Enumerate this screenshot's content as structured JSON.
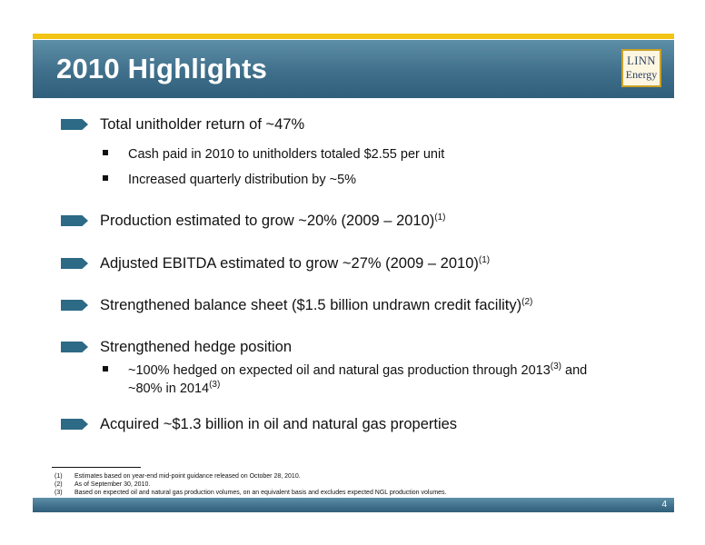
{
  "header": {
    "title": "2010 Highlights",
    "logo_line1": "LINN",
    "logo_line2": "Energy"
  },
  "items": [
    {
      "text": "Total unitholder return of ~47%",
      "subs": [
        "Cash paid in 2010 to unitholders totaled $2.55 per unit",
        "Increased quarterly distribution by ~5%"
      ]
    },
    {
      "text": "Production estimated to grow ~20% (2009 – 2010)",
      "sup": "(1)"
    },
    {
      "text": "Adjusted EBITDA estimated to grow ~27% (2009 – 2010)",
      "sup": "(1)"
    },
    {
      "text": "Strengthened balance sheet ($1.5 billion undrawn credit facility)",
      "sup": "(2)"
    },
    {
      "text": "Strengthened hedge position",
      "sub": {
        "line1": "~100% hedged on expected oil and natural gas production through 2013",
        "line1_sup": "(3)",
        "line1_tail": " and",
        "line2": "~80% in 2014",
        "line2_sup": "(3)"
      }
    },
    {
      "text": "Acquired ~$1.3 billion in oil and natural gas properties"
    }
  ],
  "footnotes": [
    {
      "num": "(1)",
      "text": "Estimates based on year-end mid-point guidance released on October 28, 2010."
    },
    {
      "num": "(2)",
      "text": "As of September 30, 2010."
    },
    {
      "num": "(3)",
      "text": "Based on expected oil and natural gas production volumes, on an equivalent basis and excludes expected NGL production volumes."
    }
  ],
  "page_number": "4",
  "colors": {
    "accent_gold": "#f2c413",
    "header_blue": "#3f6f8a",
    "arrow_blue": "#2c6a86"
  }
}
